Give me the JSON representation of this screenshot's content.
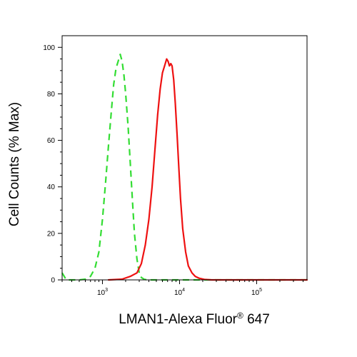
{
  "chart_data": {
    "type": "line",
    "title": "",
    "xlabel": "LMAN1-Alexa Fluor",
    "xlabel_superscript": "®",
    "xlabel_suffix": " 647",
    "ylabel": "Cell Counts (% Max)",
    "x_scale": "log",
    "xlim": [
      300,
      450000
    ],
    "ylim": [
      0,
      105
    ],
    "grid": false,
    "legend": "none",
    "x_ticks": [
      {
        "value": 1000,
        "base": "10",
        "exp": "3"
      },
      {
        "value": 10000,
        "base": "10",
        "exp": "4"
      },
      {
        "value": 100000,
        "base": "10",
        "exp": "5"
      }
    ],
    "y_ticks": [
      {
        "value": 0,
        "label": "0"
      },
      {
        "value": 20,
        "label": "20"
      },
      {
        "value": 40,
        "label": "40"
      },
      {
        "value": 60,
        "label": "60"
      },
      {
        "value": 80,
        "label": "80"
      },
      {
        "value": 100,
        "label": "100"
      }
    ],
    "series": [
      {
        "color": "#33dd33",
        "style": "dashed",
        "points": [
          [
            300,
            3
          ],
          [
            340,
            0
          ],
          [
            400,
            0
          ],
          [
            500,
            0
          ],
          [
            600,
            0.3
          ],
          [
            700,
            1.5
          ],
          [
            800,
            5
          ],
          [
            900,
            12
          ],
          [
            1000,
            26
          ],
          [
            1100,
            42
          ],
          [
            1200,
            58
          ],
          [
            1300,
            72
          ],
          [
            1400,
            84
          ],
          [
            1500,
            91
          ],
          [
            1600,
            94
          ],
          [
            1700,
            97
          ],
          [
            1800,
            94
          ],
          [
            1900,
            88
          ],
          [
            2000,
            80
          ],
          [
            2150,
            66
          ],
          [
            2300,
            50
          ],
          [
            2450,
            34
          ],
          [
            2600,
            20
          ],
          [
            2800,
            9
          ],
          [
            3000,
            3
          ],
          [
            3200,
            1
          ],
          [
            3500,
            0.2
          ],
          [
            4000,
            0
          ],
          [
            6000,
            0
          ],
          [
            10000,
            0
          ],
          [
            20000,
            0
          ],
          [
            50000,
            0
          ],
          [
            100000,
            0
          ],
          [
            200000,
            0
          ],
          [
            450000,
            0
          ]
        ]
      },
      {
        "color": "#ee1111",
        "style": "solid",
        "points": [
          [
            1200,
            0
          ],
          [
            1800,
            0.3
          ],
          [
            2300,
            1.5
          ],
          [
            2800,
            3
          ],
          [
            3200,
            7
          ],
          [
            3600,
            15
          ],
          [
            4000,
            26
          ],
          [
            4400,
            40
          ],
          [
            4800,
            56
          ],
          [
            5200,
            71
          ],
          [
            5600,
            82
          ],
          [
            6000,
            89
          ],
          [
            6400,
            92
          ],
          [
            6800,
            95
          ],
          [
            7100,
            94
          ],
          [
            7400,
            92
          ],
          [
            7700,
            93
          ],
          [
            8000,
            92
          ],
          [
            8400,
            86
          ],
          [
            8800,
            76
          ],
          [
            9300,
            62
          ],
          [
            9800,
            48
          ],
          [
            10300,
            35
          ],
          [
            11000,
            22
          ],
          [
            12000,
            12
          ],
          [
            13000,
            6
          ],
          [
            14500,
            3
          ],
          [
            16000,
            1.5
          ],
          [
            18000,
            0.7
          ],
          [
            21000,
            0.2
          ],
          [
            26000,
            0
          ],
          [
            40000,
            0
          ],
          [
            450000,
            0
          ]
        ]
      }
    ]
  }
}
